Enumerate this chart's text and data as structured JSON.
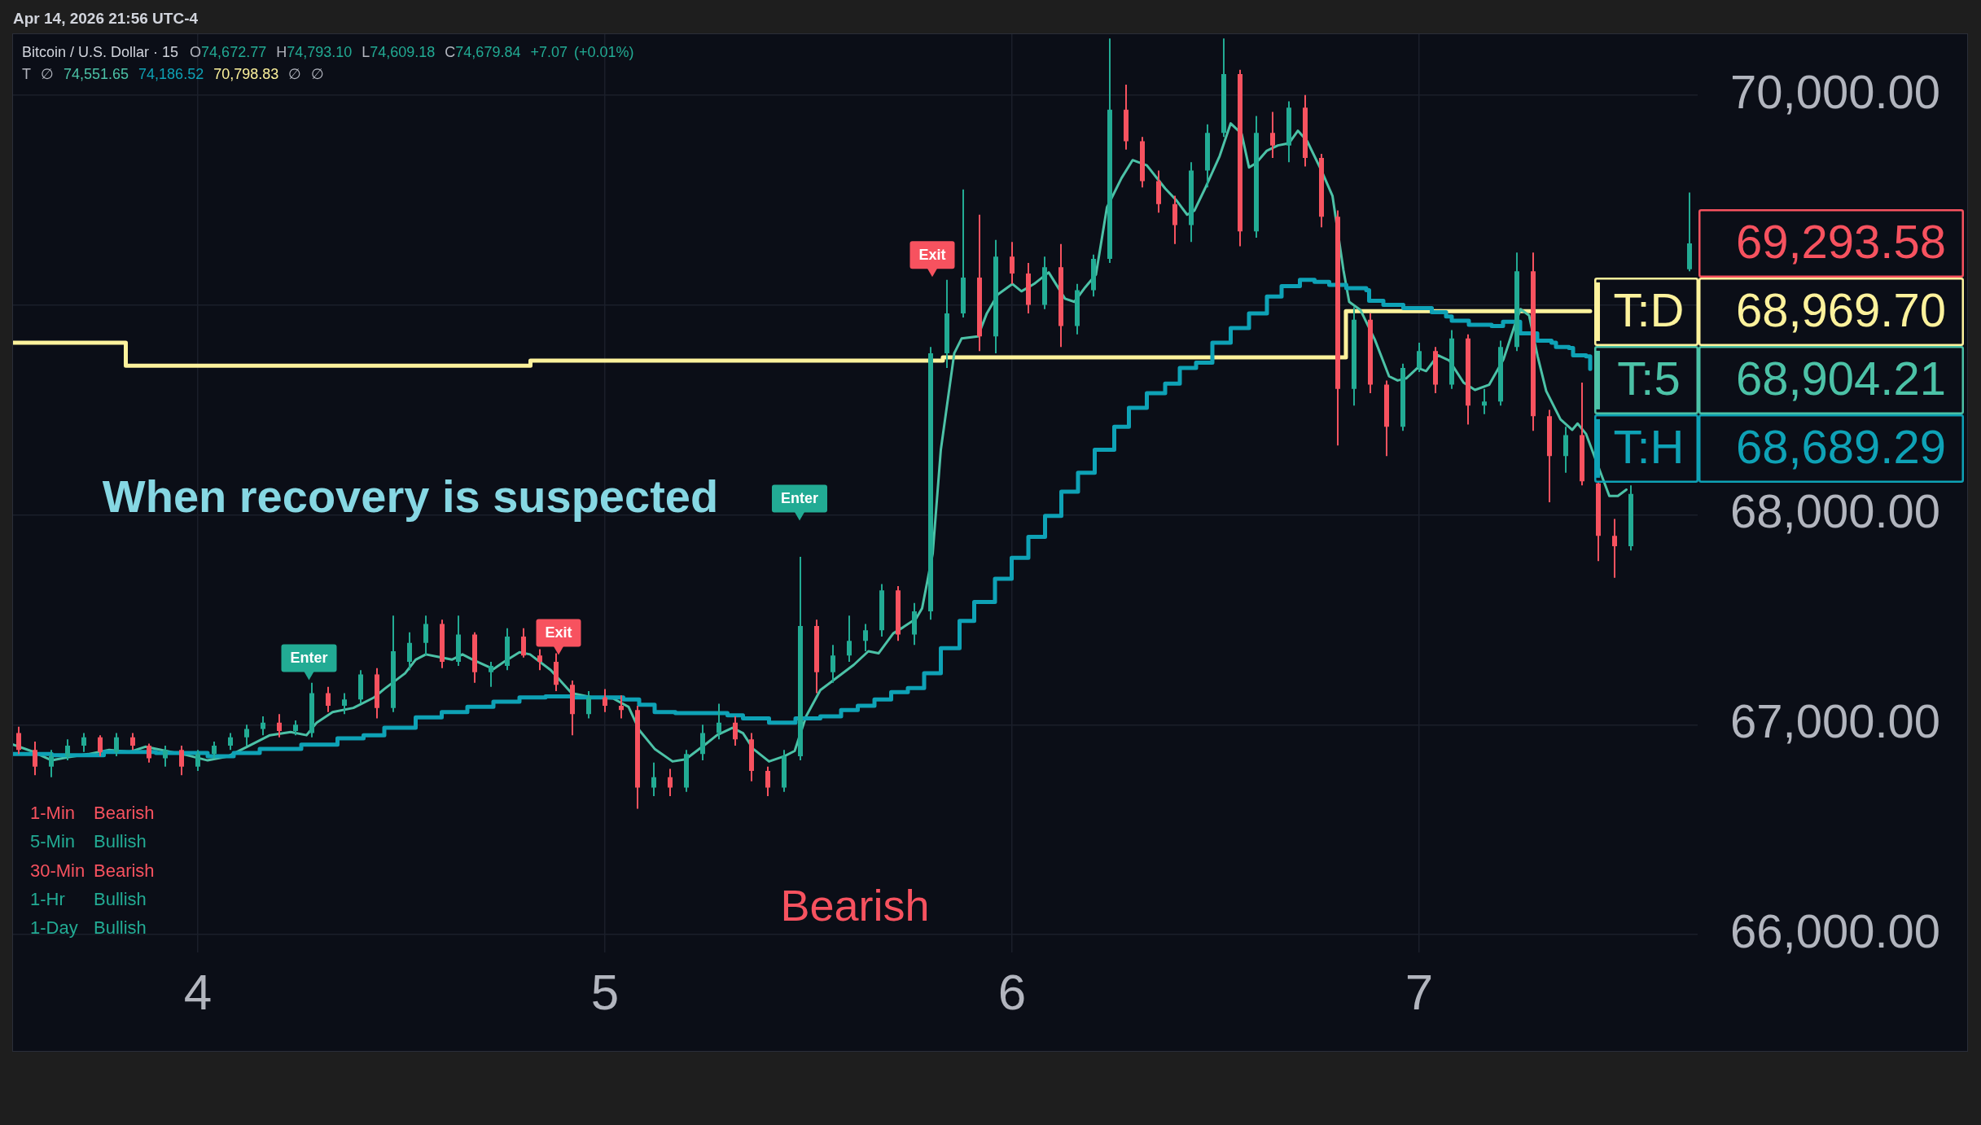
{
  "chart_data": {
    "type": "candlestick",
    "title": "Bitcoin / U.S. Dollar · 15",
    "subtitle": "O74,672.77 H74,793.10 L74,609.18 C74,679.84 +7.07 (+0.01%)",
    "annotations": [
      "Apr 14, 2026 21:56 UTC-4",
      "T ∅ 74,551.65 74,186.52 70,798.83 ∅ ∅",
      "When recovery is suspected",
      "1-Min Bearish",
      "5-Min Bullish",
      "30-Min Bearish",
      "1-Hr Bullish",
      "1-Day Bullish",
      "Bearish",
      {
        "text": "69,293.58",
        "x": 7.664,
        "y": 69293.58
      },
      "68,969.70",
      "68,904.21",
      "68,689.29"
    ],
    "x": [
      3.56,
      3.6,
      3.64,
      3.68,
      3.72,
      3.76,
      3.8,
      3.84,
      3.88,
      3.92,
      3.96,
      4,
      4.04,
      4.08,
      4.12,
      4.16,
      4.2,
      4.24,
      4.28,
      4.32,
      4.36,
      4.4,
      4.44,
      4.48,
      4.52,
      4.56,
      4.6,
      4.64,
      4.68,
      4.72,
      4.76,
      4.8,
      4.84,
      4.88,
      4.92,
      4.96,
      5,
      5.04,
      5.08,
      5.12,
      5.16,
      5.2,
      5.24,
      5.28,
      5.32,
      5.36,
      5.4,
      5.44,
      5.48,
      5.52,
      5.56,
      5.6,
      5.64,
      5.68,
      5.72,
      5.76,
      5.8,
      5.84,
      5.88,
      5.92,
      5.96,
      6,
      6.04,
      6.08,
      6.12,
      6.16,
      6.2,
      6.24,
      6.28,
      6.32,
      6.36,
      6.4,
      6.44,
      6.48,
      6.52,
      6.56,
      6.6,
      6.64,
      6.68,
      6.72,
      6.76,
      6.8,
      6.84,
      6.88,
      6.92,
      6.96,
      7,
      7.04,
      7.08,
      7.12,
      7.16,
      7.2,
      7.24,
      7.28,
      7.32,
      7.36,
      7.4,
      7.44,
      7.48,
      7.52,
      7.664
    ],
    "series": [
      {
        "ohlc": [
          [
            66960,
            66990,
            66860,
            66880
          ],
          [
            66880,
            66920,
            66760,
            66800
          ],
          [
            66800,
            66880,
            66750,
            66850
          ],
          [
            66850,
            66930,
            66830,
            66900
          ],
          [
            66900,
            66960,
            66870,
            66940
          ],
          [
            66940,
            66950,
            66850,
            66870
          ],
          [
            66870,
            66960,
            66850,
            66940
          ],
          [
            66940,
            66960,
            66880,
            66900
          ],
          [
            66900,
            66910,
            66820,
            66840
          ],
          [
            66840,
            66900,
            66800,
            66880
          ],
          [
            66880,
            66900,
            66760,
            66800
          ],
          [
            66800,
            66880,
            66780,
            66860
          ],
          [
            66860,
            66920,
            66840,
            66900
          ],
          [
            66900,
            66960,
            66880,
            66940
          ],
          [
            66940,
            67000,
            66900,
            66980
          ],
          [
            66980,
            67040,
            66950,
            67010
          ],
          [
            67010,
            67050,
            66940,
            66970
          ],
          [
            66970,
            67020,
            66950,
            67000
          ],
          [
            66960,
            67200,
            66940,
            67150
          ],
          [
            67150,
            67180,
            67060,
            67090
          ],
          [
            67090,
            67150,
            67050,
            67120
          ],
          [
            67120,
            67260,
            67100,
            67240
          ],
          [
            67240,
            67270,
            67030,
            67080
          ],
          [
            67080,
            67520,
            67060,
            67350
          ],
          [
            67300,
            67440,
            67260,
            67390
          ],
          [
            67390,
            67520,
            67330,
            67480
          ],
          [
            67480,
            67500,
            67270,
            67300
          ],
          [
            67300,
            67520,
            67280,
            67430
          ],
          [
            67430,
            67440,
            67200,
            67250
          ],
          [
            67250,
            67300,
            67180,
            67280
          ],
          [
            67280,
            67460,
            67260,
            67420
          ],
          [
            67420,
            67460,
            67320,
            67330
          ],
          [
            67330,
            67360,
            67260,
            67300
          ],
          [
            67300,
            67340,
            67160,
            67190
          ],
          [
            67190,
            67210,
            66950,
            67050
          ],
          [
            67050,
            67160,
            67030,
            67130
          ],
          [
            67130,
            67170,
            67060,
            67090
          ],
          [
            67090,
            67140,
            67030,
            67070
          ],
          [
            67070,
            67090,
            66600,
            66700
          ],
          [
            66700,
            66820,
            66660,
            66750
          ],
          [
            66750,
            66790,
            66660,
            66700
          ],
          [
            66700,
            66880,
            66680,
            66860
          ],
          [
            66860,
            67000,
            66830,
            66960
          ],
          [
            66960,
            67100,
            66930,
            67010
          ],
          [
            67010,
            67040,
            66900,
            66930
          ],
          [
            66930,
            66960,
            66730,
            66780
          ],
          [
            66780,
            66800,
            66660,
            66700
          ],
          [
            66700,
            66880,
            66680,
            66850
          ],
          [
            66850,
            67800,
            66830,
            67470
          ],
          [
            67470,
            67500,
            67150,
            67250
          ],
          [
            67250,
            67380,
            67200,
            67330
          ],
          [
            67330,
            67520,
            67300,
            67400
          ],
          [
            67400,
            67480,
            67350,
            67450
          ],
          [
            67450,
            67670,
            67420,
            67640
          ],
          [
            67640,
            67660,
            67400,
            67430
          ],
          [
            67430,
            67580,
            67380,
            67540
          ],
          [
            67540,
            68800,
            67500,
            68770
          ],
          [
            68770,
            69120,
            68700,
            68960
          ],
          [
            68960,
            69550,
            68940,
            69130
          ],
          [
            69130,
            69430,
            68780,
            68850
          ],
          [
            68850,
            69310,
            68770,
            69230
          ],
          [
            69230,
            69300,
            69100,
            69150
          ],
          [
            69150,
            69200,
            68960,
            69000
          ],
          [
            69000,
            69230,
            68980,
            69180
          ],
          [
            69180,
            69290,
            68800,
            68900
          ],
          [
            68900,
            69100,
            68860,
            69070
          ],
          [
            69070,
            69240,
            69040,
            69220
          ],
          [
            69220,
            70270,
            69200,
            69930
          ],
          [
            69930,
            70050,
            69740,
            69780
          ],
          [
            69780,
            69800,
            69560,
            69590
          ],
          [
            69590,
            69640,
            69440,
            69480
          ],
          [
            69480,
            69520,
            69290,
            69380
          ],
          [
            69380,
            69680,
            69300,
            69640
          ],
          [
            69640,
            69860,
            69560,
            69820
          ],
          [
            69820,
            70270,
            69800,
            70100
          ],
          [
            70100,
            70120,
            69280,
            69350
          ],
          [
            69350,
            69900,
            69320,
            69820
          ],
          [
            69820,
            69920,
            69700,
            69760
          ],
          [
            69760,
            69970,
            69680,
            69940
          ],
          [
            69940,
            70000,
            69660,
            69700
          ],
          [
            69700,
            69720,
            69370,
            69420
          ],
          [
            69420,
            69450,
            68330,
            68600
          ],
          [
            68600,
            68990,
            68520,
            68930
          ],
          [
            68930,
            68960,
            68580,
            68620
          ],
          [
            68620,
            68640,
            68280,
            68420
          ],
          [
            68420,
            68720,
            68400,
            68700
          ],
          [
            68700,
            68820,
            68680,
            68780
          ],
          [
            68780,
            68800,
            68580,
            68620
          ],
          [
            68620,
            68880,
            68600,
            68840
          ],
          [
            68840,
            68860,
            68430,
            68520
          ],
          [
            68520,
            68600,
            68480,
            68540
          ],
          [
            68540,
            68830,
            68520,
            68800
          ],
          [
            68800,
            69250,
            68780,
            69160
          ],
          [
            69160,
            69250,
            68400,
            68470
          ],
          [
            68470,
            68500,
            68060,
            68280
          ],
          [
            68280,
            68420,
            68200,
            68380
          ],
          [
            68380,
            68630,
            68140,
            68160
          ],
          [
            68150,
            68155,
            67780,
            67900
          ],
          [
            67900,
            67980,
            67700,
            67850
          ],
          [
            67850,
            68140,
            67830,
            68100
          ],
          [
            69170,
            69536,
            69160,
            69293.58
          ]
        ],
        "colors": [
          "#f7525f",
          "#f7525f",
          "#22ab94",
          "#22ab94",
          "#22ab94",
          "#f7525f",
          "#22ab94",
          "#f7525f",
          "#f7525f",
          "#22ab94",
          "#f7525f",
          "#22ab94",
          "#22ab94",
          "#22ab94",
          "#22ab94",
          "#22ab94",
          "#f7525f",
          "#22ab94",
          "#22ab94",
          "#f7525f",
          "#22ab94",
          "#22ab94",
          "#f7525f",
          "#22ab94",
          "#22ab94",
          "#22ab94",
          "#f7525f",
          "#22ab94",
          "#f7525f",
          "#22ab94",
          "#22ab94",
          "#f7525f",
          "#f7525f",
          "#f7525f",
          "#f7525f",
          "#22ab94",
          "#f7525f",
          "#f7525f",
          "#f7525f",
          "#22ab94",
          "#f7525f",
          "#22ab94",
          "#22ab94",
          "#22ab94",
          "#f7525f",
          "#f7525f",
          "#f7525f",
          "#22ab94",
          "#22ab94",
          "#f7525f",
          "#22ab94",
          "#22ab94",
          "#22ab94",
          "#22ab94",
          "#f7525f",
          "#22ab94",
          "#22ab94",
          "#22ab94",
          "#22ab94",
          "#f7525f",
          "#22ab94",
          "#f7525f",
          "#f7525f",
          "#22ab94",
          "#f7525f",
          "#22ab94",
          "#22ab94",
          "#22ab94",
          "#f7525f",
          "#f7525f",
          "#f7525f",
          "#f7525f",
          "#22ab94",
          "#22ab94",
          "#22ab94",
          "#f7525f",
          "#22ab94",
          "#f7525f",
          "#22ab94",
          "#f7525f",
          "#f7525f",
          "#f7525f",
          "#22ab94",
          "#f7525f",
          "#f7525f",
          "#22ab94",
          "#22ab94",
          "#f7525f",
          "#22ab94",
          "#f7525f",
          "#22ab94",
          "#22ab94",
          "#22ab94",
          "#f7525f",
          "#f7525f",
          "#22ab94",
          "#f7525f",
          "#f7525f",
          "#f7525f",
          "#22ab94",
          "#22ab94"
        ]
      },
      {
        "type": "step",
        "name": "T:D",
        "color": "#fdf29c",
        "x": [
          3.546,
          3.823,
          4.817,
          5.83,
          6.82,
          7.42
        ],
        "values": [
          68820,
          68710,
          68735,
          68750,
          68970,
          68970
        ]
      },
      {
        "type": "line",
        "name": "T:5",
        "color": "#4cc2a7",
        "x": [
          3.546,
          3.59,
          3.641,
          3.68,
          3.731,
          3.782,
          3.833,
          3.871,
          3.922,
          3.973,
          4.024,
          4.075,
          4.126,
          4.177,
          4.228,
          4.267,
          4.292,
          4.331,
          4.382,
          4.433,
          4.458,
          4.509,
          4.535,
          4.56,
          4.599,
          4.624,
          4.65,
          4.675,
          4.726,
          4.752,
          4.79,
          4.816,
          4.867,
          4.918,
          4.969,
          5.02,
          5.058,
          5.084,
          5.122,
          5.166,
          5.198,
          5.249,
          5.275,
          5.313,
          5.339,
          5.364,
          5.403,
          5.441,
          5.466,
          5.494,
          5.529,
          5.57,
          5.611,
          5.647,
          5.672,
          5.708,
          5.733,
          5.764,
          5.779,
          5.805,
          5.825,
          5.858,
          5.876,
          5.916,
          5.938,
          5.965,
          6.001,
          6.023,
          6.054,
          6.09,
          6.13,
          6.153,
          6.18,
          6.206,
          6.233,
          6.269,
          6.296,
          6.331,
          6.376,
          6.403,
          6.43,
          6.448,
          6.474,
          6.51,
          6.537,
          6.564,
          6.582,
          6.599,
          6.626,
          6.653,
          6.68,
          6.702,
          6.725,
          6.76,
          6.787,
          6.814,
          6.828,
          6.856,
          6.891,
          6.926,
          6.947,
          6.968,
          6.996,
          7.017,
          7.046,
          7.074,
          7.109,
          7.137,
          7.172,
          7.207,
          7.235,
          7.249,
          7.27,
          7.291,
          7.312,
          7.347,
          7.376,
          7.389,
          7.41,
          7.467,
          7.488,
          7.509
        ],
        "values": [
          66905,
          66875,
          66830,
          66845,
          66860,
          66880,
          66870,
          66895,
          66875,
          66855,
          66830,
          66850,
          66900,
          66950,
          66965,
          66950,
          67010,
          67060,
          67080,
          67130,
          67170,
          67245,
          67310,
          67335,
          67320,
          67310,
          67335,
          67310,
          67265,
          67300,
          67345,
          67335,
          67260,
          67150,
          67130,
          67125,
          67085,
          66975,
          66885,
          66825,
          66835,
          66910,
          66950,
          66985,
          66960,
          66885,
          66825,
          66850,
          66875,
          67040,
          67165,
          67225,
          67285,
          67350,
          67340,
          67435,
          67465,
          67505,
          67555,
          67815,
          68310,
          68770,
          68840,
          68850,
          68960,
          69050,
          69100,
          69065,
          69100,
          69155,
          69030,
          69015,
          69085,
          69145,
          69465,
          69605,
          69690,
          69665,
          69555,
          69500,
          69430,
          69450,
          69555,
          69710,
          69865,
          69815,
          69655,
          69675,
          69735,
          69760,
          69770,
          69830,
          69780,
          69640,
          69520,
          69165,
          69015,
          68975,
          68835,
          68660,
          68640,
          68650,
          68700,
          68685,
          68760,
          68735,
          68630,
          68595,
          68620,
          68740,
          68905,
          68980,
          68950,
          68755,
          68590,
          68455,
          68405,
          68435,
          68385,
          68090,
          68090,
          68120
        ]
      },
      {
        "type": "step",
        "name": "T:H",
        "color": "#0ea2b6",
        "x": [
          3.546,
          3.641,
          3.769,
          3.897,
          4.024,
          4.088,
          4.152,
          4.254,
          4.343,
          4.407,
          4.458,
          4.535,
          4.599,
          4.662,
          4.726,
          4.79,
          4.854,
          4.918,
          5.045,
          5.084,
          5.122,
          5.173,
          5.301,
          5.339,
          5.403,
          5.454,
          5.468,
          5.529,
          5.58,
          5.621,
          5.662,
          5.703,
          5.744,
          5.784,
          5.825,
          5.871,
          5.907,
          5.958,
          5.999,
          6.04,
          6.081,
          6.121,
          6.162,
          6.203,
          6.251,
          6.287,
          6.331,
          6.376,
          6.412,
          6.452,
          6.492,
          6.537,
          6.582,
          6.626,
          6.662,
          6.707,
          6.743,
          6.779,
          6.821,
          6.87,
          6.877,
          6.912,
          6.961,
          7.031,
          7.066,
          7.08,
          7.122,
          7.178,
          7.206,
          7.234,
          7.248,
          7.276,
          7.29,
          7.325,
          7.336,
          7.368,
          7.378,
          7.41,
          7.42
        ],
        "values": [
          66860,
          66855,
          66870,
          66865,
          66850,
          66865,
          66885,
          66905,
          66935,
          66950,
          66985,
          67035,
          67060,
          67085,
          67110,
          67130,
          67135,
          67130,
          67120,
          67095,
          67060,
          67055,
          67045,
          67030,
          67010,
          67010,
          67030,
          67040,
          67070,
          67090,
          67120,
          67155,
          67175,
          67245,
          67365,
          67495,
          67585,
          67695,
          67795,
          67895,
          67995,
          68110,
          68200,
          68310,
          68420,
          68510,
          68580,
          68625,
          68700,
          68725,
          68820,
          68890,
          68960,
          69040,
          69090,
          69120,
          69110,
          69095,
          69080,
          69070,
          69020,
          69000,
          68985,
          68965,
          68945,
          68925,
          68905,
          68900,
          68920,
          68920,
          68865,
          68865,
          68830,
          68820,
          68800,
          68795,
          68760,
          68755,
          68695
        ]
      },
      {
        "type": "scatter",
        "name": "Enter",
        "color": "#22ab94",
        "marker": "triangle",
        "x": [
          4.273,
          5.478
        ],
        "values": [
          67240,
          68000
        ]
      },
      {
        "type": "scatter",
        "name": "Exit",
        "color": "#f7525f",
        "marker": "triangle",
        "x": [
          4.886,
          5.804
        ],
        "values": [
          67360,
          69160
        ]
      }
    ],
    "xlim": [
      3.546,
      7.684
    ],
    "xticks": [
      4,
      5,
      6,
      7
    ],
    "ylim": [
      65915,
      70290
    ],
    "yticks": [
      {
        "value": 66000,
        "label": "66,000.00"
      },
      {
        "value": 67000,
        "label": "67,000.00"
      },
      {
        "value": 68000,
        "label": "68,000.00"
      },
      {
        "value": 69000,
        "label": null
      },
      {
        "value": 70000,
        "label": "70,000.00"
      }
    ],
    "grid": true,
    "legend": "right"
  }
}
